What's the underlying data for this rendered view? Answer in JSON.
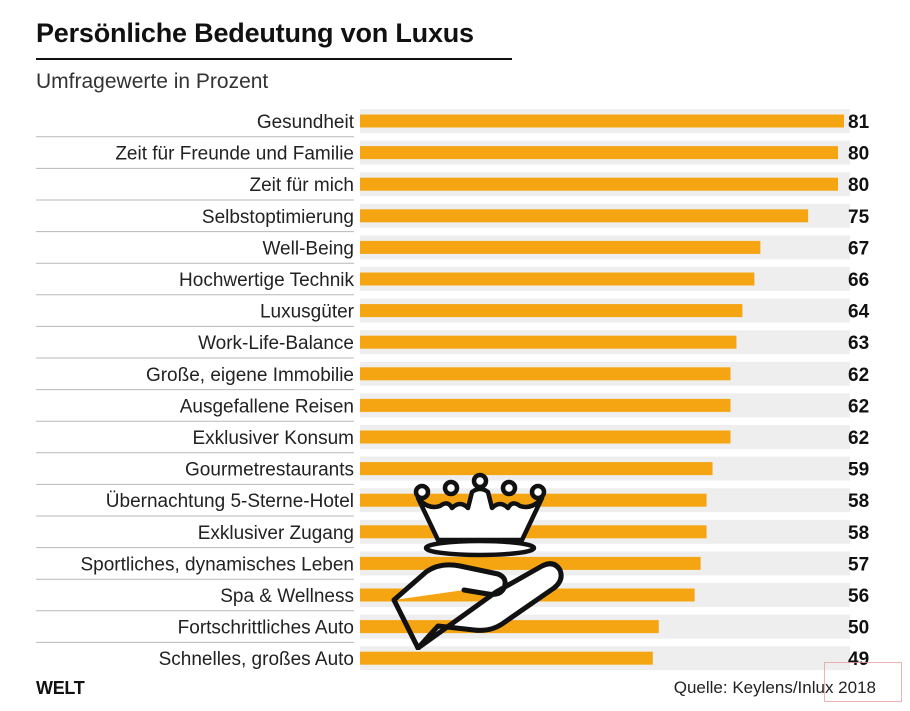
{
  "title": "Persönliche Bedeutung von Luxus",
  "subtitle": "Umfragewerte in Prozent",
  "brand": "WELT",
  "source": "Quelle: Keylens/Inlux 2018",
  "colors": {
    "bar": "#f5a512",
    "track": "#eeeeee",
    "divider": "#b8b8b8",
    "illustration": "#111111"
  },
  "illustration": {
    "icons": [
      "crown-icon",
      "open-hand-icon"
    ]
  },
  "chart_data": {
    "type": "bar",
    "orientation": "horizontal",
    "categories": [
      "Gesundheit",
      "Zeit für Freunde und Familie",
      "Zeit für mich",
      "Selbstoptimierung",
      "Well-Being",
      "Hochwertige Technik",
      "Luxusgüter",
      "Work-Life-Balance",
      "Große, eigene Immobilie",
      "Ausgefallene Reisen",
      "Exklusiver Konsum",
      "Gourmetrestaurants",
      "Übernachtung 5-Sterne-Hotel",
      "Exklusiver Zugang",
      "Sportliches, dynamisches Leben",
      "Spa & Wellness",
      "Fortschrittliches Auto",
      "Schnelles, großes Auto"
    ],
    "values": [
      81,
      80,
      80,
      75,
      67,
      66,
      64,
      63,
      62,
      62,
      62,
      59,
      58,
      58,
      57,
      56,
      50,
      49
    ],
    "value_labels": [
      "81",
      "80",
      "80",
      "75",
      "67",
      "66",
      "64",
      "63",
      "62",
      "62",
      "62",
      "59",
      "58",
      "58",
      "57",
      "56",
      "50",
      "49"
    ],
    "xlim": [
      0,
      81
    ],
    "grid": false,
    "legend": "none"
  }
}
